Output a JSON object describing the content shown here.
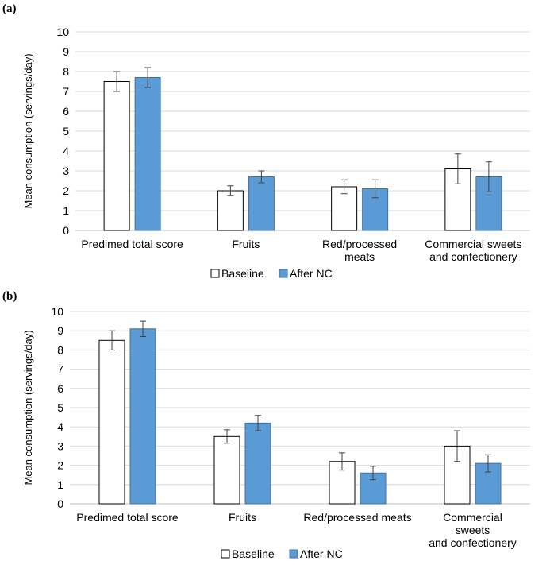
{
  "chart_data": [
    {
      "panel_label": "(a)",
      "type": "bar",
      "categories": [
        [
          "Predimed total score"
        ],
        [
          "Fruits"
        ],
        [
          "Red/processed",
          "meats"
        ],
        [
          "Commercial sweets",
          "and confectionery"
        ]
      ],
      "series": [
        {
          "name": "Baseline",
          "color": "#ffffff",
          "values": [
            7.5,
            2.0,
            2.2,
            3.1
          ],
          "error": [
            0.5,
            0.25,
            0.35,
            0.75
          ]
        },
        {
          "name": "After NC",
          "color": "#5b9bd5",
          "values": [
            7.7,
            2.7,
            2.1,
            2.7
          ],
          "error": [
            0.5,
            0.3,
            0.45,
            0.75
          ]
        }
      ],
      "ylabel": "Mean consumption  (servings/day)",
      "ylim": [
        0,
        10
      ],
      "yticks": [
        "0",
        "1",
        "2",
        "3",
        "4",
        "5",
        "6",
        "7",
        "8",
        "9",
        "10"
      ],
      "grid": true,
      "legend": "bottom-center"
    },
    {
      "panel_label": "(b)",
      "type": "bar",
      "categories": [
        [
          "Predimed total score"
        ],
        [
          "Fruits"
        ],
        [
          "Red/processed meats"
        ],
        [
          "Commercial",
          "sweets",
          "and confectionery"
        ]
      ],
      "series": [
        {
          "name": "Baseline",
          "color": "#ffffff",
          "values": [
            8.5,
            3.5,
            2.2,
            3.0
          ],
          "error": [
            0.5,
            0.35,
            0.45,
            0.8
          ]
        },
        {
          "name": "After NC",
          "color": "#5b9bd5",
          "values": [
            9.1,
            4.2,
            1.6,
            2.1
          ],
          "error": [
            0.4,
            0.4,
            0.35,
            0.45
          ]
        }
      ],
      "ylabel": "Mean consumption  (servings/day)",
      "ylim": [
        0,
        10
      ],
      "yticks": [
        "0",
        "1",
        "2",
        "3",
        "4",
        "5",
        "6",
        "7",
        "8",
        "9",
        "10"
      ],
      "grid": true,
      "legend": "bottom-center"
    }
  ]
}
